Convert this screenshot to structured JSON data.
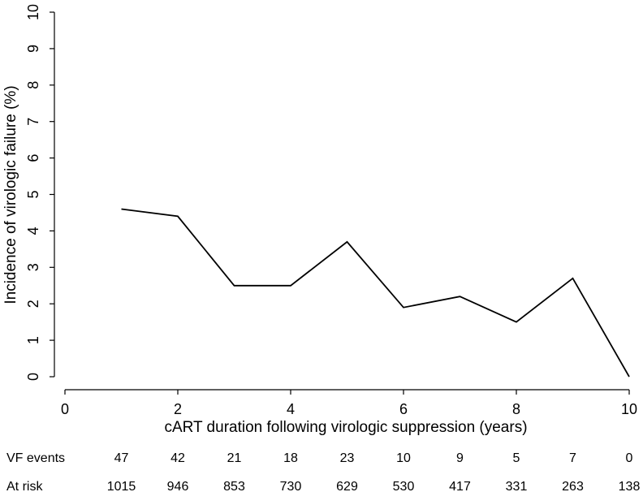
{
  "chart_data": {
    "type": "line",
    "xlabel": "cART duration following virologic suppression (years)",
    "ylabel": "Incidence of virologic failure (%)",
    "xlim": [
      0,
      10
    ],
    "ylim": [
      0,
      10
    ],
    "x_ticks": [
      0,
      2,
      4,
      6,
      8,
      10
    ],
    "y_ticks": [
      0,
      1,
      2,
      3,
      4,
      5,
      6,
      7,
      8,
      9,
      10
    ],
    "grid": false,
    "series": [
      {
        "x": [
          1,
          2,
          3,
          4,
          5,
          6,
          7,
          8,
          9,
          10
        ],
        "y": [
          4.6,
          4.4,
          2.5,
          2.5,
          3.7,
          1.9,
          2.2,
          1.5,
          2.7,
          0.0
        ]
      }
    ],
    "risk_table": {
      "rows": [
        {
          "label": "VF events",
          "values": [
            "47",
            "42",
            "21",
            "18",
            "23",
            "10",
            "9",
            "5",
            "7",
            "0"
          ]
        },
        {
          "label": "At risk",
          "values": [
            "1015",
            "946",
            "853",
            "730",
            "629",
            "530",
            "417",
            "331",
            "263",
            "138"
          ]
        }
      ]
    }
  }
}
